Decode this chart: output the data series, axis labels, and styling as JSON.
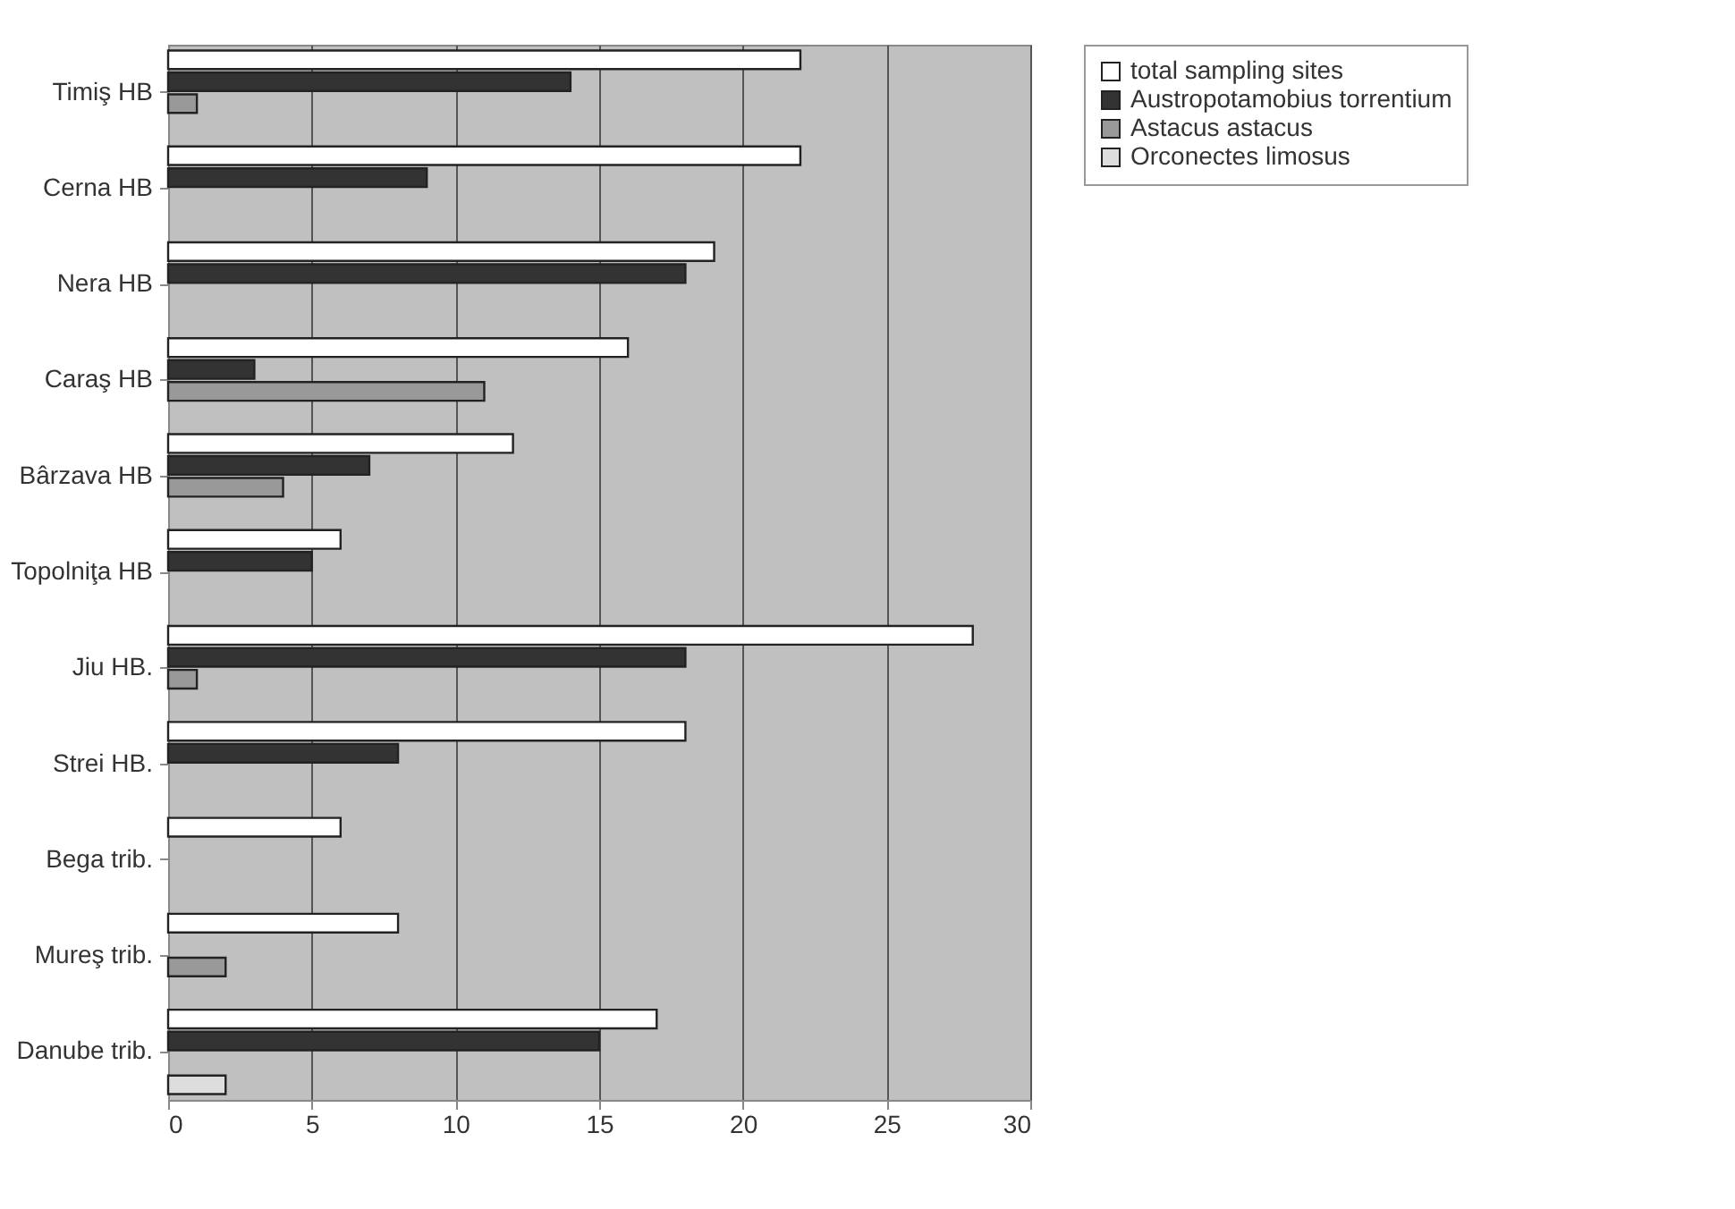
{
  "chart_data": {
    "type": "bar",
    "orientation": "horizontal",
    "categories": [
      "Timiş HB",
      "Cerna HB",
      "Nera HB",
      "Caraş HB",
      "Bârzava HB",
      "Topolniţa HB",
      "Jiu HB.",
      "Strei HB.",
      "Bega trib.",
      "Mureş trib.",
      "Danube trib."
    ],
    "series": [
      {
        "name": "total sampling sites",
        "color": "#ffffff",
        "values": [
          22,
          22,
          19,
          16,
          12,
          6,
          28,
          18,
          6,
          8,
          17
        ]
      },
      {
        "name": "Austropotamobius torrentium",
        "color": "#333333",
        "values": [
          14,
          9,
          18,
          3,
          7,
          5,
          18,
          8,
          null,
          null,
          15
        ]
      },
      {
        "name": "Astacus astacus",
        "color": "#999999",
        "values": [
          1,
          null,
          null,
          11,
          4,
          null,
          1,
          null,
          null,
          2,
          null
        ]
      },
      {
        "name": "Orconectes limosus",
        "color": "#dddddd",
        "values": [
          null,
          null,
          null,
          null,
          null,
          null,
          null,
          null,
          null,
          null,
          2
        ]
      }
    ],
    "xlim": [
      0,
      30
    ],
    "xticks": [
      0,
      5,
      10,
      15,
      20,
      25,
      30
    ],
    "grid": "x",
    "legend": "right"
  }
}
